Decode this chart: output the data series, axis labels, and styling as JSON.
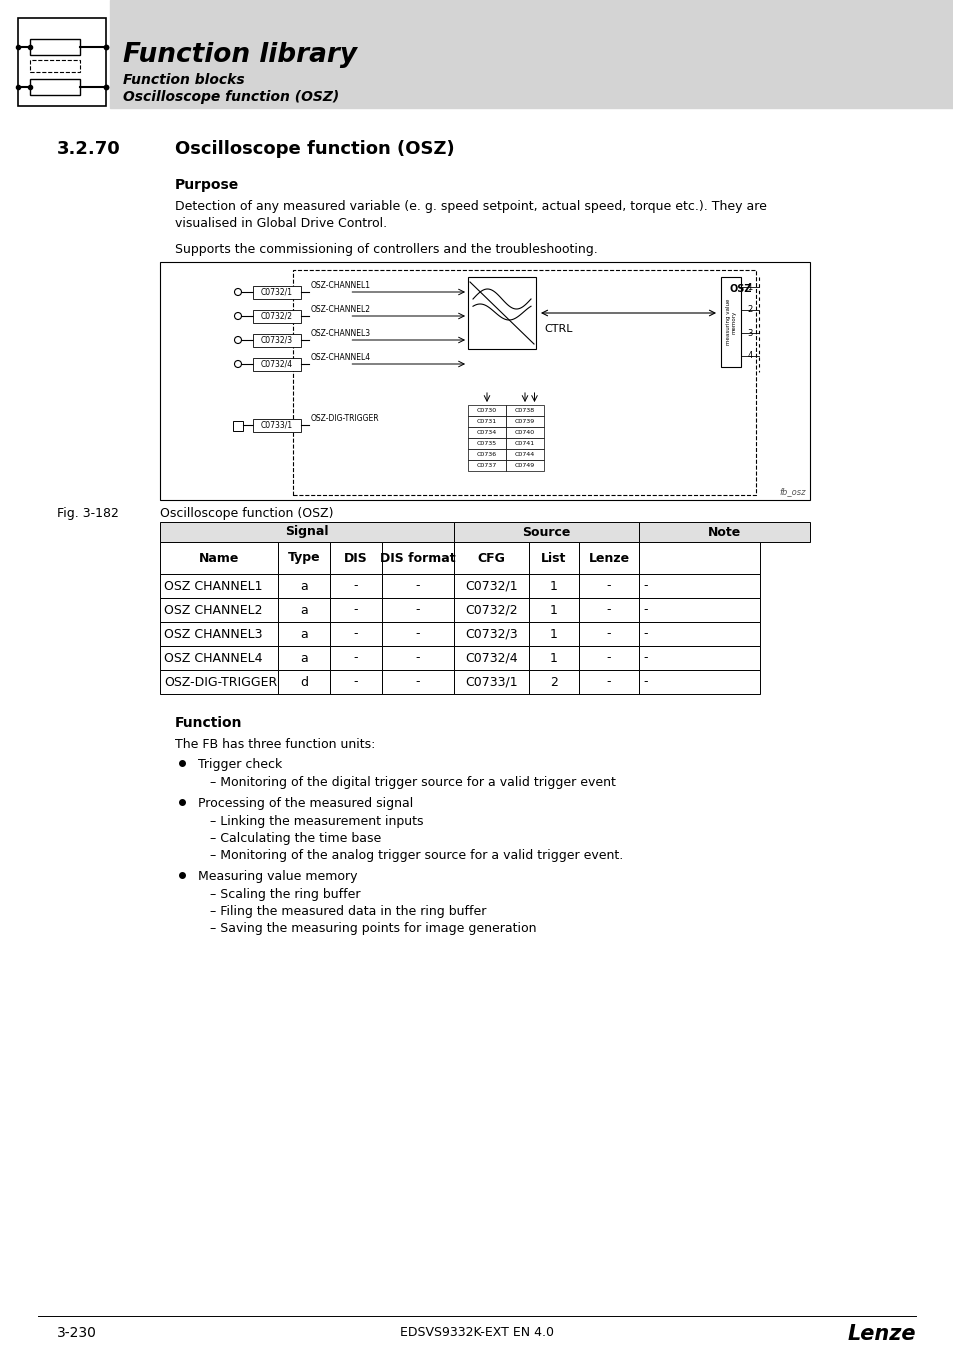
{
  "page_number": "3-230",
  "footer_center": "EDSVS9332K-EXT EN 4.0",
  "header_title": "Function library",
  "header_sub1": "Function blocks",
  "header_sub2": "Oscilloscope function (OSZ)",
  "section_number": "3.2.70",
  "section_title": "Oscilloscope function (OSZ)",
  "purpose_heading": "Purpose",
  "purpose_text1": "Detection of any measured variable (e. g. speed setpoint, actual speed, torque etc.). They are\nvisualised in Global Drive Control.",
  "purpose_text2": "Supports the commissioning of controllers and the troubleshooting.",
  "fig_label": "Fig. 3-182",
  "fig_caption": "Oscilloscope function (OSZ)",
  "function_heading": "Function",
  "function_intro": "The FB has three function units:",
  "bullet_items": [
    {
      "title": "Trigger check",
      "subitems": [
        "Monitoring of the digital trigger source for a valid trigger event"
      ]
    },
    {
      "title": "Processing of the measured signal",
      "subitems": [
        "Linking the measurement inputs",
        "Calculating the time base",
        "Monitoring of the analog trigger source for a valid trigger event."
      ]
    },
    {
      "title": "Measuring value memory",
      "subitems": [
        "Scaling the ring buffer",
        "Filing the measured data in the ring buffer",
        "Saving the measuring points for image generation"
      ]
    }
  ],
  "table_rows": [
    [
      "OSZ CHANNEL1",
      "a",
      "-",
      "-",
      "C0732/1",
      "1",
      "-",
      "-"
    ],
    [
      "OSZ CHANNEL2",
      "a",
      "-",
      "-",
      "C0732/2",
      "1",
      "-",
      "-"
    ],
    [
      "OSZ CHANNEL3",
      "a",
      "-",
      "-",
      "C0732/3",
      "1",
      "-",
      "-"
    ],
    [
      "OSZ CHANNEL4",
      "a",
      "-",
      "-",
      "C0732/4",
      "1",
      "-",
      "-"
    ],
    [
      "OSZ-DIG-TRIGGER",
      "d",
      "-",
      "-",
      "C0733/1",
      "2",
      "-",
      "-"
    ]
  ],
  "bg_color": "#ffffff",
  "header_bg": "#d4d4d4",
  "text_color": "#000000",
  "diag_channels": [
    [
      "C0732/1",
      "OSZ-CHANNEL1"
    ],
    [
      "C0732/2",
      "OSZ-CHANNEL2"
    ],
    [
      "C0732/3",
      "OSZ-CHANNEL3"
    ],
    [
      "C0732/4",
      "OSZ-CHANNEL4"
    ]
  ],
  "param_codes_left": [
    "C0730",
    "C0731",
    "C0734",
    "C0735",
    "C0736",
    "C0737"
  ],
  "param_codes_right": [
    "C0738",
    "C0739",
    "C0740",
    "C0741",
    "C0744",
    "C0749"
  ]
}
